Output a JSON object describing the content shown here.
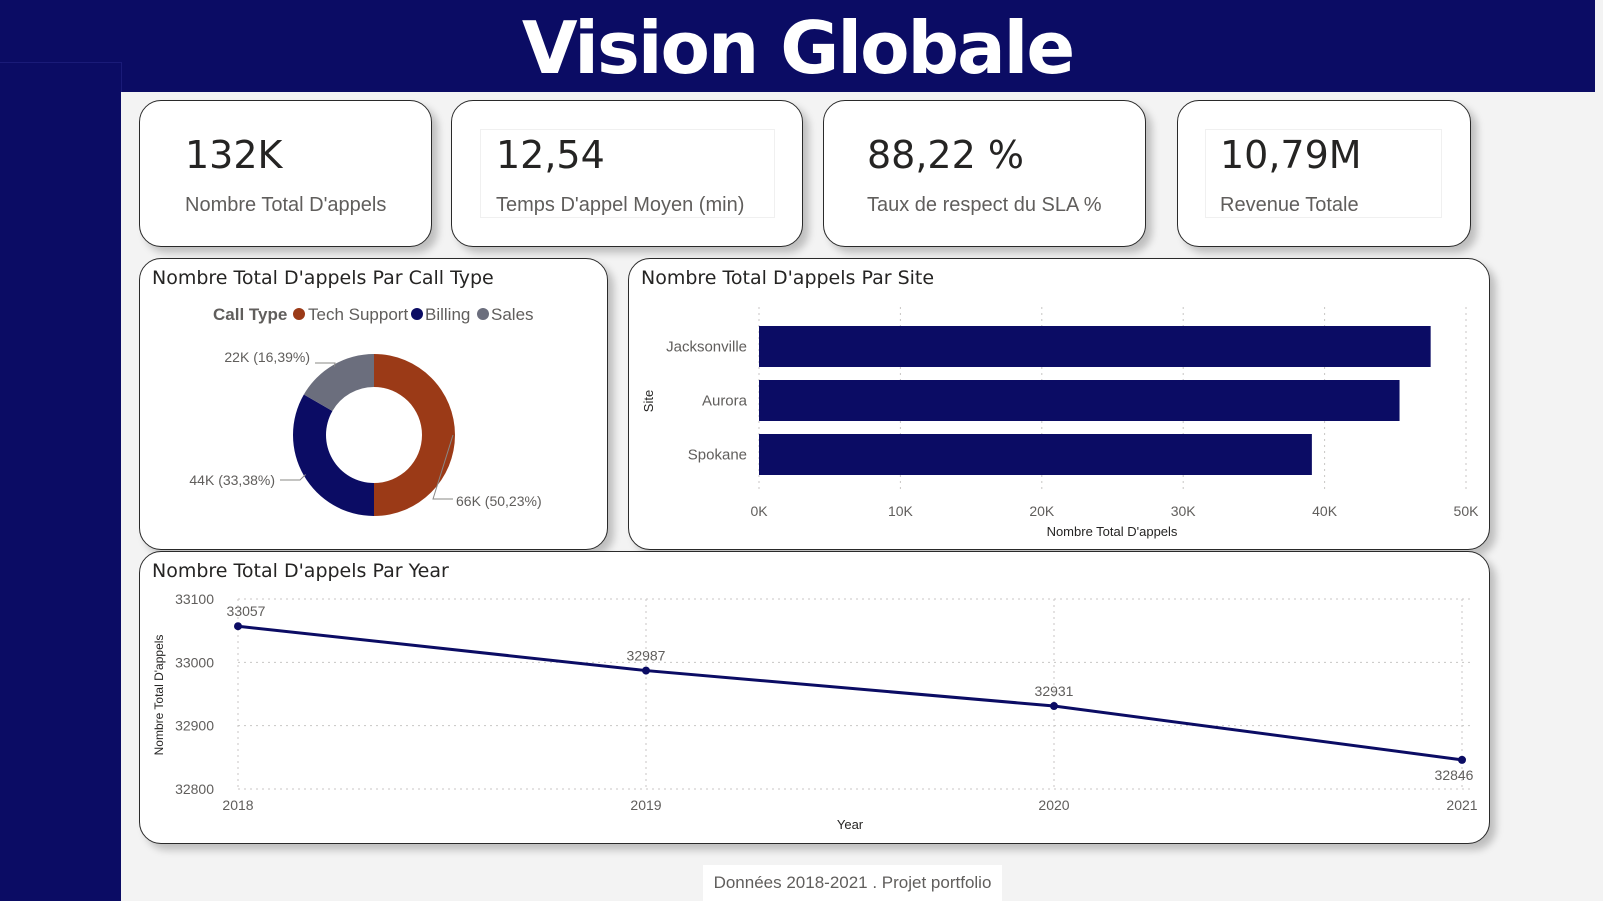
{
  "page": {
    "title": "Vision Globale",
    "footer": "Données 2018-2021 . Projet portfolio"
  },
  "colors": {
    "navy": "#0b0c64",
    "tech_support": "#9b3a17",
    "billing": "#0b0c64",
    "sales": "#6b6e7d"
  },
  "kpis": [
    {
      "value": "132K",
      "label": "Nombre Total D'appels"
    },
    {
      "value": "12,54",
      "label": "Temps D'appel Moyen (min)"
    },
    {
      "value": "88,22 %",
      "label": "Taux de respect du SLA %"
    },
    {
      "value": "10,79M",
      "label": "Revenue Totale"
    }
  ],
  "chart_data": [
    {
      "type": "pie",
      "variant": "donut",
      "title": "Nombre Total D'appels Par Call Type",
      "legend_title": "Call Type",
      "legend_position": "top",
      "labels": [
        "Tech Support",
        "Billing",
        "Sales"
      ],
      "values": [
        66,
        44,
        22
      ],
      "percentages": [
        50.23,
        33.38,
        16.39
      ],
      "data_labels": [
        "66K (50,23%)",
        "44K (33,38%)",
        "22K (16,39%)"
      ],
      "colors": [
        "#9b3a17",
        "#0b0c64",
        "#6b6e7d"
      ]
    },
    {
      "type": "bar",
      "orientation": "horizontal",
      "title": "Nombre Total D'appels Par Site",
      "categories": [
        "Jacksonville",
        "Aurora",
        "Spokane"
      ],
      "values": [
        47500,
        45300,
        39100
      ],
      "xlabel": "Nombre Total D'appels",
      "ylabel": "Site",
      "xlim": [
        0,
        50000
      ],
      "xticks": [
        "0K",
        "10K",
        "20K",
        "30K",
        "40K",
        "50K"
      ],
      "grid": true,
      "color": "#0b0c64"
    },
    {
      "type": "line",
      "title": "Nombre Total D'appels Par Year",
      "x": [
        "2018",
        "2019",
        "2020",
        "2021"
      ],
      "values": [
        33057,
        32987,
        32931,
        32846
      ],
      "data_labels": [
        "33057",
        "32987",
        "32931",
        "32846"
      ],
      "xlabel": "Year",
      "ylabel": "Nombre Total D'appels",
      "ylim": [
        32800,
        33100
      ],
      "yticks": [
        "33100",
        "33000",
        "32900",
        "32800"
      ],
      "grid": true,
      "color": "#0b0c64"
    }
  ]
}
